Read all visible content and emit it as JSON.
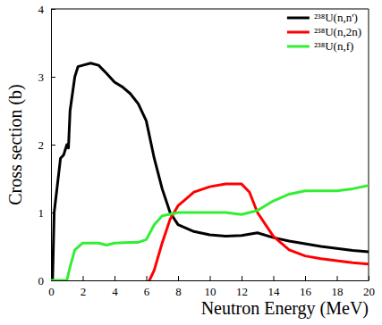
{
  "chart_data": {
    "type": "line",
    "x_label": "Neutron Energy (MeV)",
    "y_label": "Cross section (b)",
    "xlim": [
      0,
      20
    ],
    "ylim": [
      0,
      4
    ],
    "xticks": [
      0,
      2,
      4,
      6,
      8,
      10,
      12,
      14,
      16,
      18,
      20
    ],
    "yticks": [
      0,
      1,
      2,
      3,
      4
    ],
    "grid": false,
    "legend": "upper right",
    "series": [
      {
        "name": "²³⁸U(n,n')",
        "color": "#000000",
        "x": [
          0.1,
          0.2,
          0.4,
          0.6,
          0.8,
          1.0,
          1.1,
          1.2,
          1.5,
          1.7,
          2,
          2.5,
          3,
          3.5,
          4,
          4.5,
          5,
          5.5,
          6,
          6.5,
          7,
          7.5,
          8,
          9,
          10,
          11,
          12,
          13,
          14,
          15,
          16,
          17,
          18,
          19,
          20
        ],
        "values": [
          0,
          1.0,
          1.4,
          1.8,
          1.85,
          2.0,
          1.95,
          2.5,
          3.0,
          3.15,
          3.17,
          3.2,
          3.17,
          3.05,
          2.92,
          2.85,
          2.75,
          2.6,
          2.35,
          1.8,
          1.35,
          1.0,
          0.82,
          0.72,
          0.67,
          0.65,
          0.66,
          0.7,
          0.63,
          0.58,
          0.54,
          0.5,
          0.47,
          0.44,
          0.42
        ]
      },
      {
        "name": "²³⁸U(n,2n)",
        "color": "#ff0000",
        "x": [
          6.2,
          6.5,
          7,
          7.5,
          8,
          8.5,
          9,
          10,
          11,
          12,
          12.5,
          13,
          14,
          15,
          16,
          17,
          18,
          19,
          20
        ],
        "values": [
          0,
          0.15,
          0.55,
          0.9,
          1.1,
          1.2,
          1.3,
          1.38,
          1.42,
          1.42,
          1.3,
          1.0,
          0.65,
          0.45,
          0.36,
          0.32,
          0.29,
          0.26,
          0.24
        ]
      },
      {
        "name": "²³⁸U(n,f)",
        "color": "#33ee33",
        "x": [
          0,
          1,
          1.2,
          1.5,
          2,
          3,
          3.5,
          4,
          5,
          5.5,
          6,
          6.5,
          7,
          8,
          9,
          10,
          11,
          12,
          13,
          14,
          15,
          16,
          17,
          18,
          19,
          20
        ],
        "values": [
          0,
          0,
          0.2,
          0.45,
          0.55,
          0.55,
          0.52,
          0.55,
          0.56,
          0.56,
          0.6,
          0.82,
          0.95,
          1.0,
          1.0,
          1.0,
          1.0,
          0.97,
          1.03,
          1.17,
          1.27,
          1.32,
          1.32,
          1.32,
          1.35,
          1.4
        ]
      }
    ]
  }
}
